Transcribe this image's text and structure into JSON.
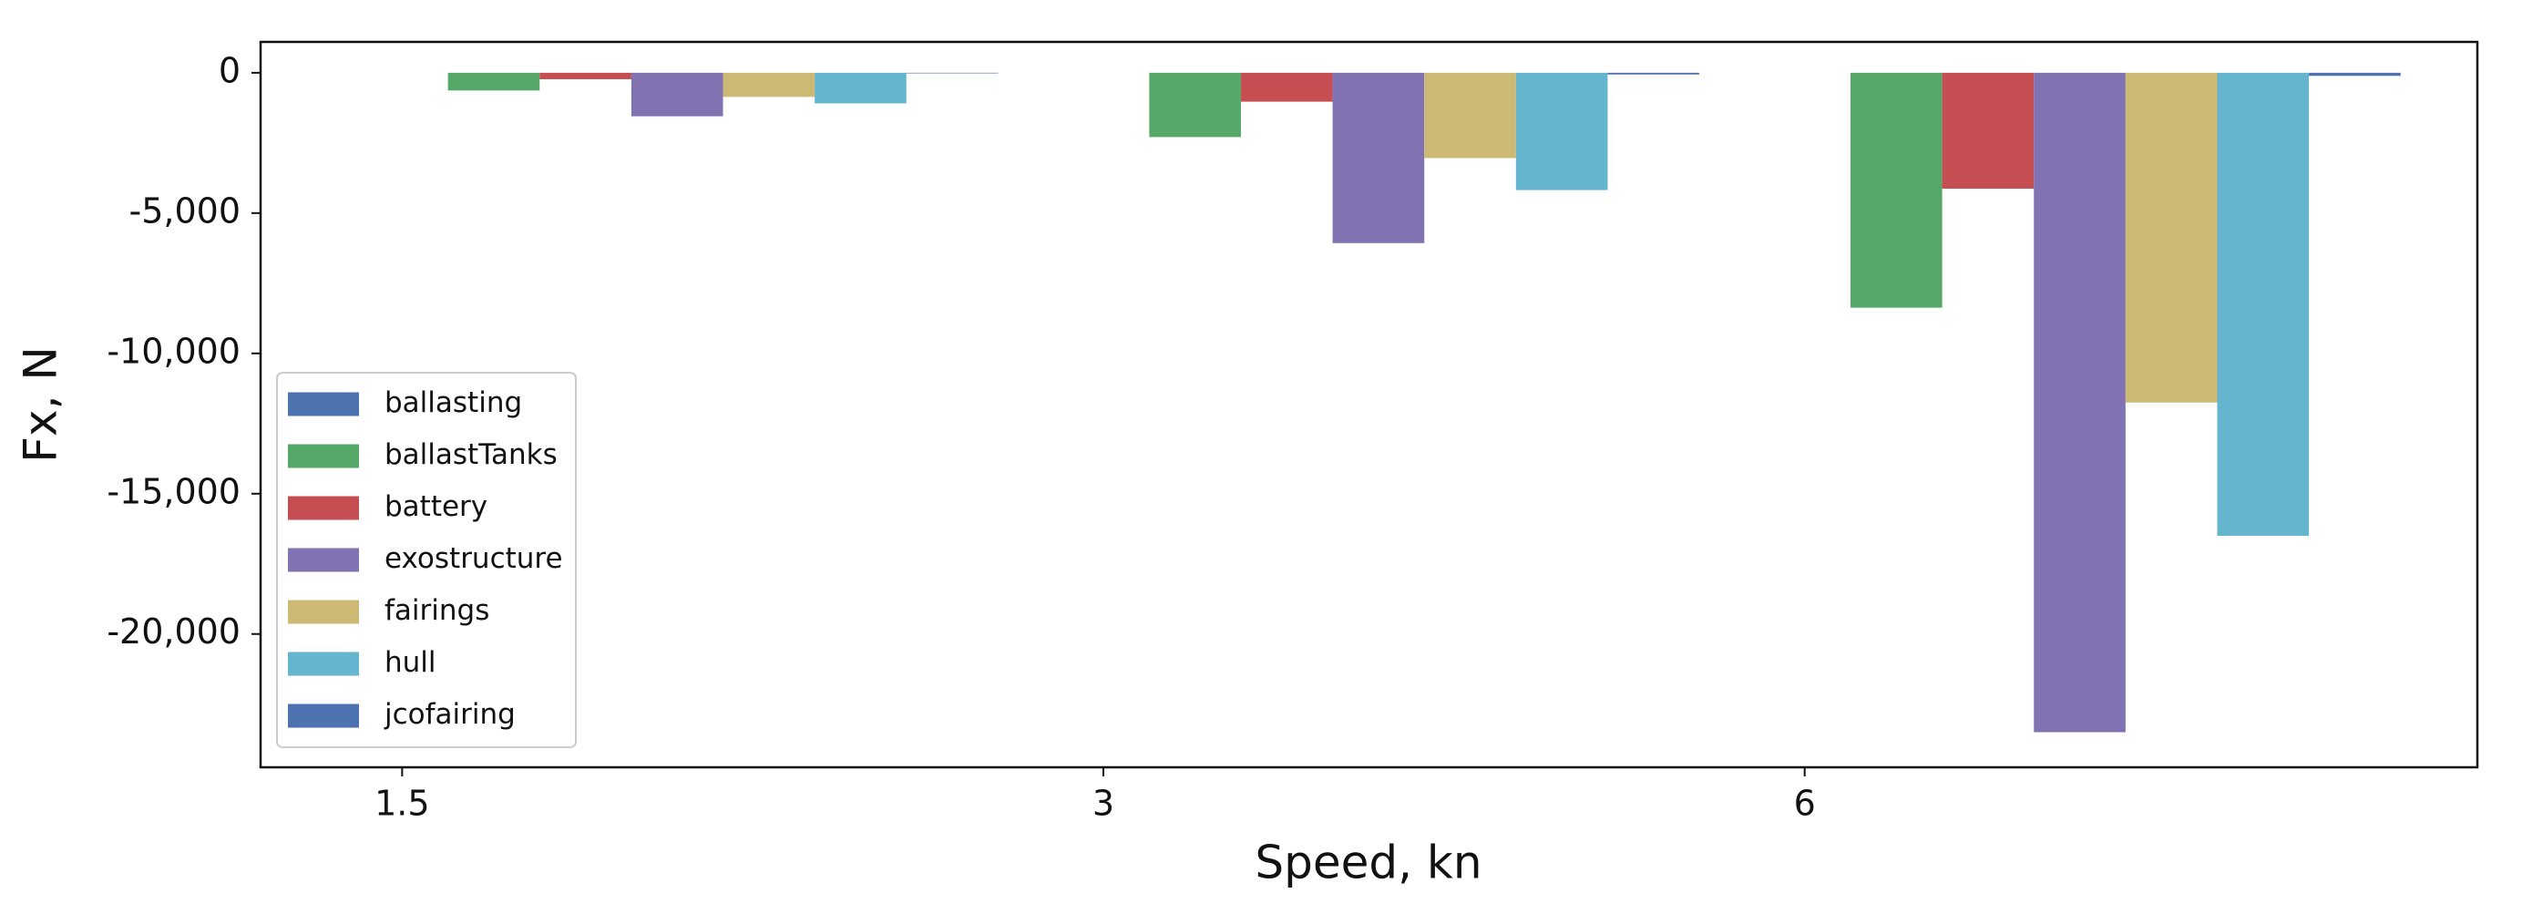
{
  "chart_data": {
    "type": "bar",
    "categories": [
      "1.5",
      "3",
      "6"
    ],
    "xlabel": "Speed, kn",
    "ylabel": "Fx, N",
    "series": [
      {
        "name": "ballasting",
        "color": "#4c72b0",
        "values": [
          0,
          0,
          0
        ]
      },
      {
        "name": "ballastTanks",
        "color": "#55a868",
        "values": [
          -630,
          -2290,
          -8370
        ]
      },
      {
        "name": "battery",
        "color": "#c44e52",
        "values": [
          -230,
          -1030,
          -4130
        ]
      },
      {
        "name": "exostructure",
        "color": "#8172b2",
        "values": [
          -1550,
          -6070,
          -23500
        ]
      },
      {
        "name": "fairings",
        "color": "#ccb974",
        "values": [
          -860,
          -3040,
          -11750
        ]
      },
      {
        "name": "hull",
        "color": "#64b5cd",
        "values": [
          -1090,
          -4180,
          -16500
        ]
      },
      {
        "name": "jcofairing",
        "color": "#4c72b0",
        "values": [
          -20,
          -60,
          -110
        ]
      }
    ],
    "ylim": [
      -24750,
      1100
    ],
    "yticks": [
      0,
      {
        "value": -5000,
        "label": "-5,000"
      },
      {
        "value": -10000,
        "label": "-10,000"
      },
      {
        "value": -15000,
        "label": "-15,000"
      },
      {
        "value": -20000,
        "label": "-20,000"
      }
    ],
    "grid": false,
    "legend": "lower left"
  }
}
